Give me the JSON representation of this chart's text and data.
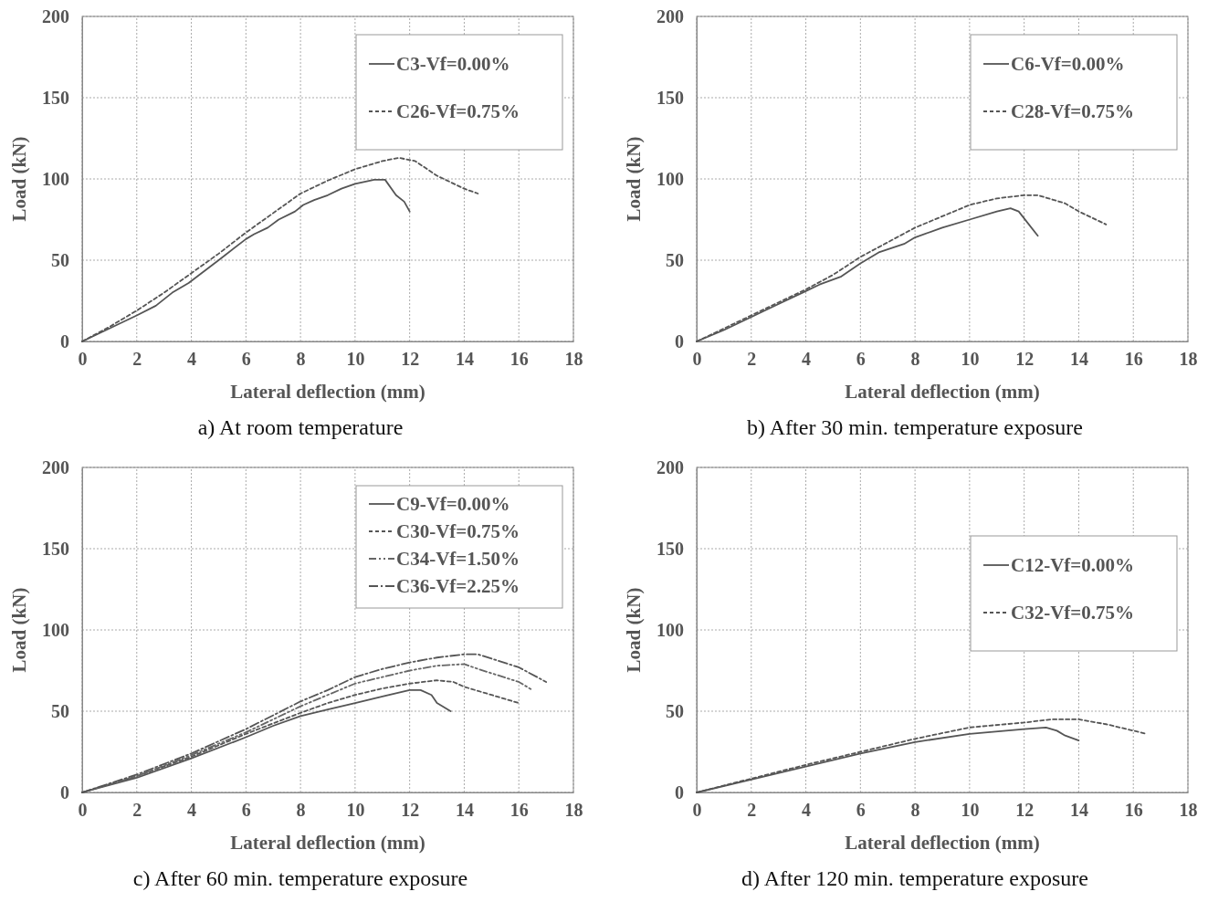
{
  "chart_data": [
    {
      "type": "line",
      "title": "a)  At room temperature",
      "xlabel": "Lateral deflection (mm)",
      "ylabel": "Load (kN)",
      "xlim": [
        0,
        18
      ],
      "xticks": [
        0,
        2,
        4,
        6,
        8,
        10,
        12,
        14,
        16,
        18
      ],
      "ylim": [
        0,
        200
      ],
      "yticks": [
        0,
        50,
        100,
        150,
        200
      ],
      "grid": true,
      "legend": "top right",
      "series": [
        {
          "name": "C3-Vf=0.00%",
          "color": "#555555",
          "line_style": "solid",
          "x": [
            0,
            1,
            2,
            2.7,
            3.3,
            3.9,
            5,
            6,
            6.3,
            6.8,
            7.2,
            7.8,
            8.1,
            8.5,
            9,
            9.5,
            10,
            10.7,
            11.1,
            11.5,
            11.8,
            12
          ],
          "values": [
            0,
            8,
            16,
            22,
            30,
            36,
            50,
            63,
            66,
            70,
            75,
            80,
            84,
            87,
            90,
            94,
            97,
            99.5,
            99.5,
            90,
            86,
            80
          ]
        },
        {
          "name": "C26-Vf=0.75%",
          "color": "#555555",
          "line_style": "dashed",
          "x": [
            0,
            1,
            2,
            3,
            4,
            5,
            6,
            7,
            8,
            9,
            10,
            11,
            11.6,
            12.2,
            13,
            14,
            14.5
          ],
          "values": [
            0,
            9,
            19,
            30,
            42,
            54,
            67,
            79,
            91,
            99,
            106,
            111,
            113,
            111,
            102,
            94,
            91
          ]
        }
      ]
    },
    {
      "type": "line",
      "title": "b) After 30 min. temperature exposure",
      "xlabel": "Lateral deflection (mm)",
      "ylabel": "Load (kN)",
      "xlim": [
        0,
        18
      ],
      "xticks": [
        0,
        2,
        4,
        6,
        8,
        10,
        12,
        14,
        16,
        18
      ],
      "ylim": [
        0,
        200
      ],
      "yticks": [
        0,
        50,
        100,
        150,
        200
      ],
      "grid": true,
      "legend": "top right",
      "series": [
        {
          "name": "C6-Vf=0.00%",
          "color": "#555555",
          "line_style": "solid",
          "x": [
            0,
            1,
            2,
            3,
            4,
            4.5,
            5.3,
            6,
            6.7,
            7.6,
            8,
            9,
            10,
            11,
            11.5,
            11.8,
            12.5
          ],
          "values": [
            0,
            7,
            15,
            23,
            31,
            35,
            40,
            48,
            55,
            60,
            64,
            70,
            75,
            80,
            82,
            80,
            65
          ]
        },
        {
          "name": "C28-Vf=0.75%",
          "color": "#555555",
          "line_style": "dashed",
          "x": [
            0,
            1,
            2,
            3,
            4,
            5,
            6,
            7,
            8,
            9,
            10,
            11,
            12,
            12.5,
            13.5,
            14,
            15
          ],
          "values": [
            0,
            8,
            16,
            24,
            32,
            41,
            52,
            61,
            70,
            77,
            84,
            88,
            90,
            90,
            85,
            80,
            72
          ]
        }
      ]
    },
    {
      "type": "line",
      "title": "c) After 60 min. temperature exposure",
      "xlabel": "Lateral deflection (mm)",
      "ylabel": "Load (kN)",
      "xlim": [
        0,
        18
      ],
      "xticks": [
        0,
        2,
        4,
        6,
        8,
        10,
        12,
        14,
        16,
        18
      ],
      "ylim": [
        0,
        200
      ],
      "yticks": [
        0,
        50,
        100,
        150,
        200
      ],
      "grid": true,
      "legend": "top right",
      "series": [
        {
          "name": "C9-Vf=0.00%",
          "color": "#555555",
          "line_style": "solid",
          "x": [
            0,
            2,
            4,
            6,
            7,
            8,
            9,
            10,
            11,
            12,
            12.4,
            12.8,
            13,
            13.5
          ],
          "values": [
            0,
            9,
            21,
            34,
            41,
            47,
            51,
            55,
            59,
            63,
            63,
            60,
            55,
            50
          ]
        },
        {
          "name": "C30-Vf=0.75%",
          "color": "#555555",
          "line_style": "dashed",
          "x": [
            0,
            2,
            4,
            6,
            8,
            9,
            10,
            11,
            12,
            13,
            13.6,
            14,
            15,
            16
          ],
          "values": [
            0,
            10,
            22,
            36,
            49,
            55,
            60,
            64,
            67,
            69,
            68,
            65,
            60,
            55
          ]
        },
        {
          "name": "C34-Vf=1.50%",
          "color": "#666666",
          "line_style": "dotted",
          "x": [
            0,
            2,
            4,
            6,
            8,
            10,
            11,
            12,
            13,
            14,
            14.5,
            16,
            16.5
          ],
          "values": [
            0,
            10,
            23,
            37,
            53,
            67,
            71,
            75,
            78,
            79,
            76,
            68,
            63
          ]
        },
        {
          "name": "C36-Vf=2.25%",
          "color": "#555555",
          "line_style": "dashed",
          "x": [
            0,
            2,
            4,
            6,
            8,
            9,
            10,
            11,
            12,
            13,
            14,
            14.5,
            16,
            17
          ],
          "values": [
            0,
            11,
            24,
            39,
            56,
            63,
            71,
            76,
            80,
            83,
            85,
            85,
            77,
            68
          ]
        }
      ]
    },
    {
      "type": "line",
      "title": "d) After 120 min. temperature exposure",
      "xlabel": "Lateral deflection (mm)",
      "ylabel": "Load (kN)",
      "xlim": [
        0,
        18
      ],
      "xticks": [
        0,
        2,
        4,
        6,
        8,
        10,
        12,
        14,
        16,
        18
      ],
      "ylim": [
        0,
        200
      ],
      "yticks": [
        0,
        50,
        100,
        150,
        200
      ],
      "grid": true,
      "legend": "right",
      "series": [
        {
          "name": "C12-Vf=0.00%",
          "color": "#555555",
          "line_style": "solid",
          "x": [
            0,
            2,
            4,
            6,
            8,
            10,
            12,
            12.8,
            13.2,
            13.5,
            14
          ],
          "values": [
            0,
            8,
            16,
            24,
            31,
            36,
            39,
            40,
            38,
            35,
            32
          ]
        },
        {
          "name": "C32-Vf=0.75%",
          "color": "#555555",
          "line_style": "dashed",
          "x": [
            0,
            2,
            4,
            6,
            8,
            10,
            12,
            13,
            14,
            15,
            16,
            16.5
          ],
          "values": [
            0,
            8.5,
            17,
            25,
            33,
            40,
            43,
            45,
            45,
            42,
            38,
            36
          ]
        }
      ]
    }
  ]
}
